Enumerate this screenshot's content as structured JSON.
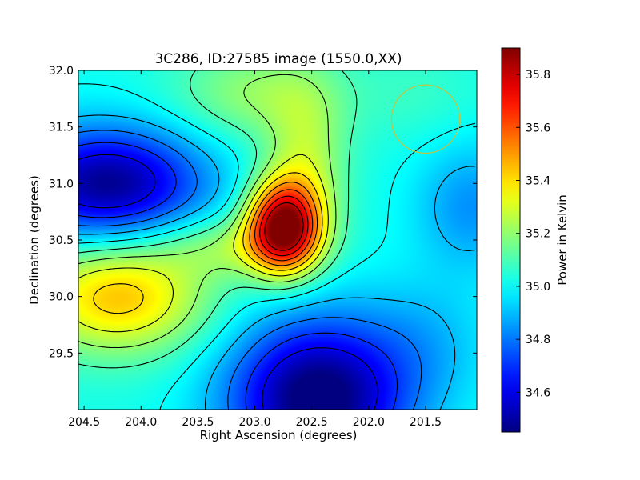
{
  "chart_data": {
    "type": "heatmap",
    "title": "3C286, ID:27585 image (1550.0,XX)",
    "xlabel": "Right Ascension (degrees)",
    "ylabel": "Declination (degrees)",
    "colorbar_label": "Power in Kelvin",
    "xlim": [
      204.55,
      201.05
    ],
    "ylim": [
      29.0,
      32.0
    ],
    "x_ticks": [
      {
        "value": 204.5,
        "label": "204.5"
      },
      {
        "value": 204.0,
        "label": "204.0"
      },
      {
        "value": 203.5,
        "label": "203.5"
      },
      {
        "value": 203.0,
        "label": "203.0"
      },
      {
        "value": 202.5,
        "label": "202.5"
      },
      {
        "value": 202.0,
        "label": "202.0"
      },
      {
        "value": 201.5,
        "label": "201.5"
      }
    ],
    "y_ticks": [
      {
        "value": 29.5,
        "label": "29.5"
      },
      {
        "value": 30.0,
        "label": "30.0"
      },
      {
        "value": 30.5,
        "label": "30.5"
      },
      {
        "value": 31.0,
        "label": "31.0"
      },
      {
        "value": 31.5,
        "label": "31.5"
      },
      {
        "value": 32.0,
        "label": "32.0"
      }
    ],
    "colorbar_range": [
      34.45,
      35.9
    ],
    "colorbar_ticks": [
      {
        "value": 34.6,
        "label": "34.6"
      },
      {
        "value": 34.8,
        "label": "34.8"
      },
      {
        "value": 35.0,
        "label": "35.0"
      },
      {
        "value": 35.2,
        "label": "35.2"
      },
      {
        "value": 35.4,
        "label": "35.4"
      },
      {
        "value": 35.6,
        "label": "35.6"
      },
      {
        "value": 35.8,
        "label": "35.8"
      }
    ],
    "colormap": "jet",
    "field": {
      "base": 35.02,
      "components": [
        {
          "ra": 202.75,
          "dec": 30.62,
          "amp": 0.85,
          "sra": 0.22,
          "sdec": 0.28
        },
        {
          "ra": 202.55,
          "dec": 31.15,
          "amp": 0.22,
          "sra": 0.25,
          "sdec": 0.5
        },
        {
          "ra": 203.2,
          "dec": 30.45,
          "amp": 0.18,
          "sra": 0.45,
          "sdec": 0.2
        },
        {
          "ra": 204.2,
          "dec": 30.0,
          "amp": 0.42,
          "sra": 0.55,
          "sdec": 0.35
        },
        {
          "ra": 204.3,
          "dec": 31.0,
          "amp": -0.55,
          "sra": 0.6,
          "sdec": 0.35
        },
        {
          "ra": 202.45,
          "dec": 29.1,
          "amp": -0.62,
          "sra": 0.55,
          "sdec": 0.5
        },
        {
          "ra": 201.1,
          "dec": 30.8,
          "amp": -0.18,
          "sra": 0.35,
          "sdec": 0.4
        },
        {
          "ra": 201.5,
          "dec": 29.6,
          "amp": -0.1,
          "sra": 0.4,
          "sdec": 0.4
        },
        {
          "ra": 203.0,
          "dec": 31.8,
          "amp": 0.18,
          "sra": 0.5,
          "sdec": 0.3
        },
        {
          "ra": 201.6,
          "dec": 31.8,
          "amp": 0.05,
          "sra": 0.4,
          "sdec": 0.3
        }
      ],
      "contour_levels": [
        34.6,
        34.7,
        34.8,
        34.9,
        35.0,
        35.1,
        35.2,
        35.3,
        35.4,
        35.5,
        35.6,
        35.7,
        35.8
      ]
    },
    "beam_circle": {
      "ra": 201.5,
      "dec": 31.57,
      "radius_deg": 0.3,
      "color": "#c8c03a"
    },
    "contour_color": "#000000",
    "grid": false,
    "legend": "none"
  }
}
